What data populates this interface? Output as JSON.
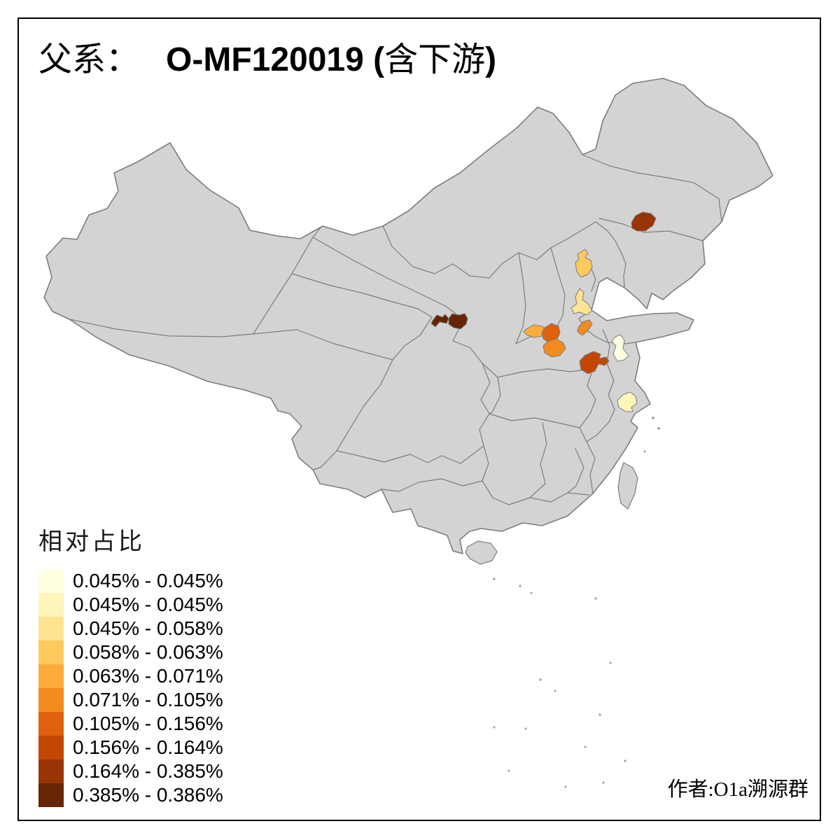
{
  "title": {
    "parts": [
      "父系：",
      "O-MF120019 (",
      "含下游",
      ")"
    ]
  },
  "legend": {
    "title": "相对占比",
    "items": [
      {
        "color": "#FFFFE2",
        "label": "0.045% - 0.045%"
      },
      {
        "color": "#FDF5B9",
        "label": "0.045% - 0.045%"
      },
      {
        "color": "#FEE391",
        "label": "0.045% - 0.058%"
      },
      {
        "color": "#FEC95D",
        "label": "0.058% - 0.063%"
      },
      {
        "color": "#FDAC3C",
        "label": "0.063% - 0.071%"
      },
      {
        "color": "#F28B20",
        "label": "0.071% - 0.105%"
      },
      {
        "color": "#DF600E",
        "label": "0.105% - 0.156%"
      },
      {
        "color": "#C44603",
        "label": "0.156% - 0.164%"
      },
      {
        "color": "#993404",
        "label": "0.164% - 0.385%"
      },
      {
        "color": "#662506",
        "label": "0.385% - 0.386%"
      }
    ]
  },
  "attribution": "作者:O1a溯源群",
  "map": {
    "base_fill": "#D3D3D3",
    "border_color": "#7d7d7d",
    "sea_color": "#FFFFFF",
    "regions": [
      {
        "id": "patch-northwest-west-lobe",
        "color": "#662506"
      },
      {
        "id": "patch-northwest-east-lobe",
        "color": "#662506"
      },
      {
        "id": "patch-northeast",
        "color": "#993404"
      },
      {
        "id": "patch-beijing",
        "color": "#FEC95D"
      },
      {
        "id": "patch-north-pale-yellow",
        "color": "#FEE391"
      },
      {
        "id": "patch-central-light-orange",
        "color": "#FDAC3C"
      },
      {
        "id": "patch-central-dark-orange",
        "color": "#DF600E"
      },
      {
        "id": "patch-central-orange",
        "color": "#F28B20"
      },
      {
        "id": "patch-east-small-orange",
        "color": "#F28B20"
      },
      {
        "id": "patch-east-dark-red-orange",
        "color": "#C44603"
      },
      {
        "id": "patch-east-pale-cream",
        "color": "#FFFFE2"
      },
      {
        "id": "patch-southeast-pale-yellow",
        "color": "#FDF5B9"
      }
    ]
  }
}
